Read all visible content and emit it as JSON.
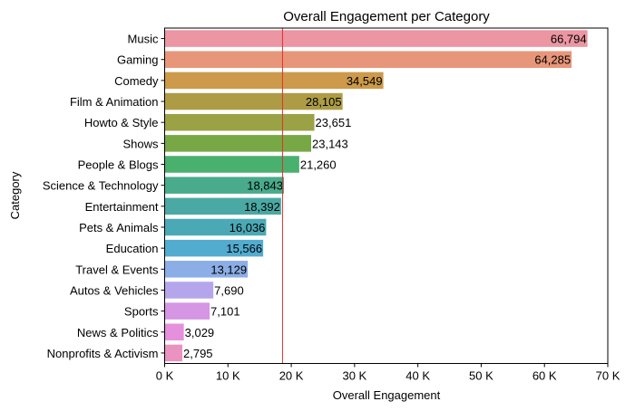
{
  "chart_data": {
    "type": "bar",
    "orientation": "horizontal",
    "title": "Overall Engagement per Category",
    "xlabel": "Overall Engagement",
    "ylabel": "Category",
    "xlim": [
      0,
      70000
    ],
    "xticks": [
      0,
      10000,
      20000,
      30000,
      40000,
      50000,
      60000,
      70000
    ],
    "xtick_labels": [
      "0 K",
      "10 K",
      "20 K",
      "30 K",
      "40 K",
      "50 K",
      "60 K",
      "70 K"
    ],
    "grid": false,
    "reference_line": {
      "x": 18618,
      "color": "#e03030",
      "meaning": "median"
    },
    "categories": [
      "Music",
      "Gaming",
      "Comedy",
      "Film & Animation",
      "Howto & Style",
      "Shows",
      "People & Blogs",
      "Science & Technology",
      "Entertainment",
      "Pets & Animals",
      "Education",
      "Travel & Events",
      "Autos & Vehicles",
      "Sports",
      "News & Politics",
      "Nonprofits & Activism"
    ],
    "values": [
      66794,
      64285,
      34549,
      28105,
      23651,
      23143,
      21260,
      18843,
      18392,
      16036,
      15566,
      13129,
      7690,
      7101,
      3029,
      2795
    ],
    "data_labels": [
      "66,794",
      "64,285",
      "34,549",
      "28,105",
      "23,651",
      "23,143",
      "21,260",
      "18,843",
      "18,392",
      "16,036",
      "15,566",
      "13,129",
      "7,690",
      "7,101",
      "3,029",
      "2,795"
    ],
    "label_inside": [
      true,
      true,
      true,
      true,
      false,
      false,
      false,
      true,
      true,
      true,
      true,
      true,
      false,
      false,
      false,
      false
    ],
    "colors": [
      "#eb96a2",
      "#e8967a",
      "#cc9a4a",
      "#ad9c45",
      "#9ba245",
      "#78a846",
      "#4ab06e",
      "#49ab8c",
      "#4aa9a4",
      "#4ba9b6",
      "#52accf",
      "#8caee7",
      "#b5a6ec",
      "#d596e4",
      "#e68fdc",
      "#ea93c0"
    ]
  }
}
